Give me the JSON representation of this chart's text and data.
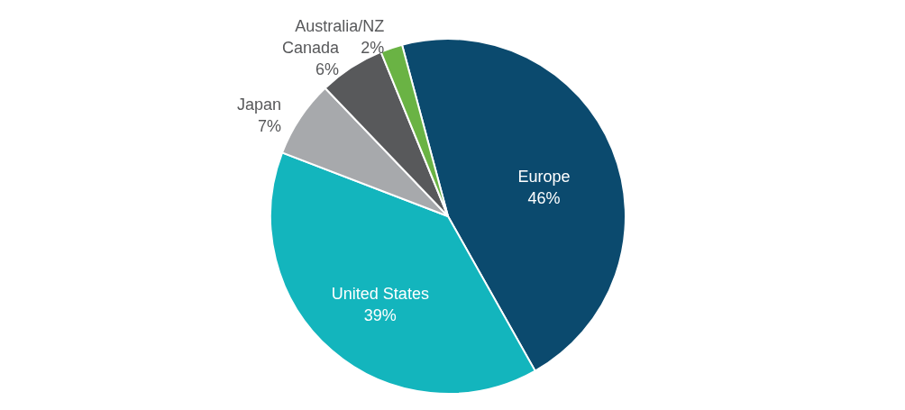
{
  "chart_data": {
    "type": "pie",
    "categories": [
      "Europe",
      "United States",
      "Japan",
      "Canada",
      "Australia/NZ"
    ],
    "values": [
      46,
      39,
      7,
      6,
      2
    ],
    "value_labels": [
      "46%",
      "39%",
      "7%",
      "6%",
      "2%"
    ],
    "colors": [
      "#0b4a6e",
      "#13b5bd",
      "#a7a9ac",
      "#58595b",
      "#6ab344"
    ]
  }
}
